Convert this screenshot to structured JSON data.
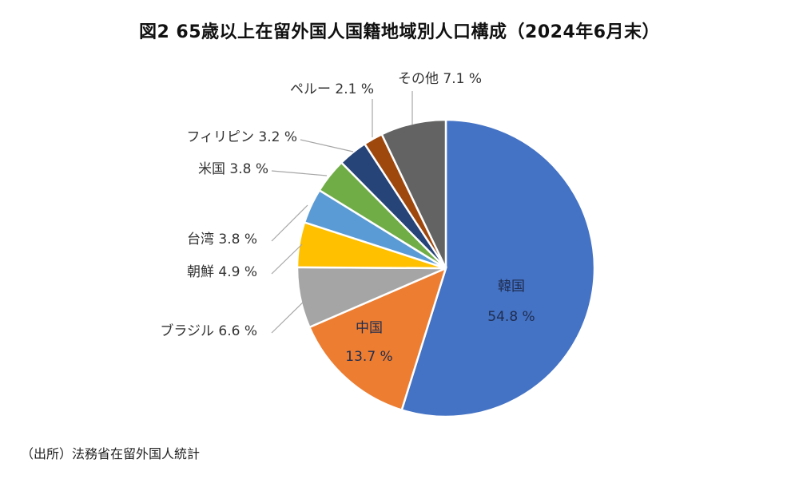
{
  "chart_data": {
    "type": "pie",
    "title": "図2 65歳以上在留外国人国籍地域別人口構成（2024年6月末）",
    "slices": [
      {
        "label": "韓国",
        "value": 54.8,
        "color": "#4472C4",
        "text": "54.8 %"
      },
      {
        "label": "中国",
        "value": 13.7,
        "color": "#ED7D31",
        "text": "13.7 %"
      },
      {
        "label": "ブラジル",
        "value": 6.6,
        "color": "#A5A5A5",
        "text": "6.6 %"
      },
      {
        "label": "朝鮮",
        "value": 4.9,
        "color": "#FFC000",
        "text": "4.9 %"
      },
      {
        "label": "台湾",
        "value": 3.8,
        "color": "#5B9BD5",
        "text": "3.8 %"
      },
      {
        "label": "米国",
        "value": 3.8,
        "color": "#70AD47",
        "text": "3.8 %"
      },
      {
        "label": "フィリピン",
        "value": 3.2,
        "color": "#264478",
        "text": "3.2 %"
      },
      {
        "label": "ペルー",
        "value": 2.1,
        "color": "#9E480E",
        "text": "2.1 %"
      },
      {
        "label": "その他",
        "value": 7.1,
        "color": "#636363",
        "text": "7.1 %"
      }
    ]
  },
  "source_note": "（出所）法務省在留外国人統計"
}
